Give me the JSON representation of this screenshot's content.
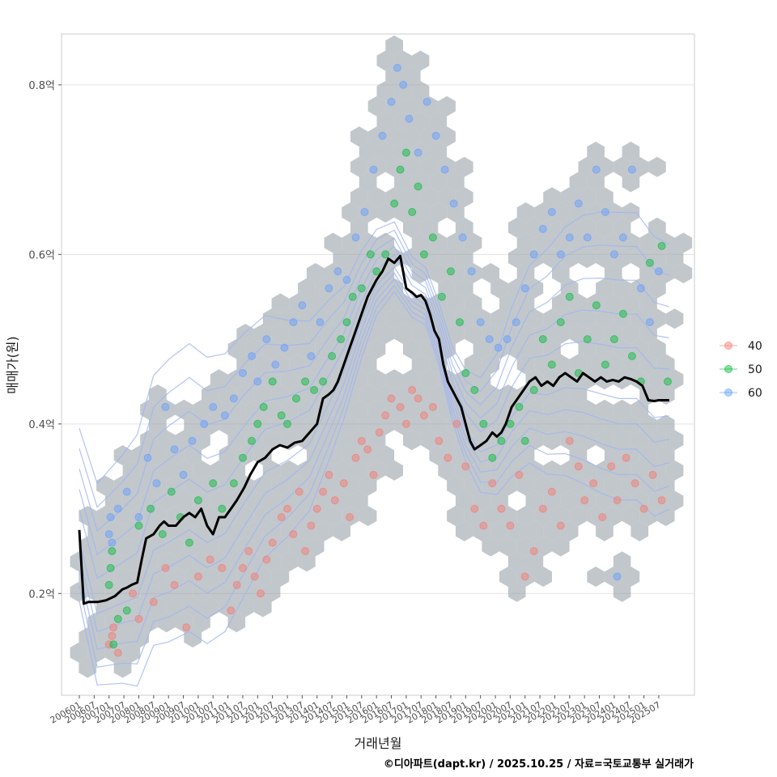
{
  "chart_data": {
    "type": "scatter",
    "title": "",
    "xlabel": "거래년월",
    "ylabel": "매매가(원)",
    "caption": "©디아파트(dapt.kr) / 2025.10.25 / 자료=국토교통부 실거래가",
    "y_unit": "억",
    "ylim": [
      0.08,
      0.86
    ],
    "y_ticks": [
      {
        "value": 0.2,
        "label": "0.2억"
      },
      {
        "value": 0.4,
        "label": "0.4억"
      },
      {
        "value": 0.6,
        "label": "0.6억"
      },
      {
        "value": 0.8,
        "label": "0.8억"
      }
    ],
    "x_ticks": [
      "200601",
      "200607",
      "200701",
      "200707",
      "200801",
      "200807",
      "200901",
      "200907",
      "201001",
      "201007",
      "201101",
      "201107",
      "201201",
      "201207",
      "201301",
      "201307",
      "201401",
      "201407",
      "201501",
      "201507",
      "201601",
      "201607",
      "201701",
      "201707",
      "201801",
      "201807",
      "201901",
      "201907",
      "202001",
      "202007",
      "202101",
      "202107",
      "202201",
      "202207",
      "202301",
      "202307",
      "202401",
      "202407",
      "202501",
      "202507"
    ],
    "legend": {
      "position": "right",
      "entries": [
        {
          "name": "40",
          "color": "#F8766D"
        },
        {
          "name": "50",
          "color": "#00BA38"
        },
        {
          "name": "60",
          "color": "#619CFF"
        }
      ]
    },
    "hexbin_color": "#9aa1a8",
    "contour_color": "#9fb4f2",
    "trend_line": {
      "name": "moving average",
      "color": "#000000",
      "x": [
        2006.0,
        2006.15,
        2006.3,
        2006.6,
        2006.9,
        2007.2,
        2007.45,
        2007.6,
        2007.75,
        2007.95,
        2008.1,
        2008.25,
        2008.5,
        2008.7,
        2008.85,
        2009.0,
        2009.25,
        2009.5,
        2009.7,
        2009.9,
        2010.1,
        2010.3,
        2010.5,
        2010.7,
        2010.9,
        2011.1,
        2011.3,
        2011.55,
        2011.75,
        2012.0,
        2012.25,
        2012.5,
        2012.75,
        2013.0,
        2013.25,
        2013.5,
        2013.75,
        2014.0,
        2014.2,
        2014.4,
        2014.55,
        2014.7,
        2014.9,
        2015.1,
        2015.3,
        2015.5,
        2015.7,
        2015.85,
        2016.0,
        2016.2,
        2016.4,
        2016.6,
        2016.8,
        2017.0,
        2017.2,
        2017.35,
        2017.5,
        2017.65,
        2017.8,
        2017.95,
        2018.1,
        2018.25,
        2018.4,
        2018.55,
        2018.7,
        2018.85,
        2019.0,
        2019.15,
        2019.3,
        2019.5,
        2019.7,
        2019.9,
        2020.05,
        2020.2,
        2020.35,
        2020.55,
        2020.75,
        2020.95,
        2021.15,
        2021.35,
        2021.55,
        2021.75,
        2021.95,
        2022.15,
        2022.35,
        2022.55,
        2022.75,
        2022.95,
        2023.15,
        2023.35,
        2023.55,
        2023.75,
        2023.95,
        2024.15,
        2024.35,
        2024.55,
        2024.75,
        2024.95,
        2025.15,
        2025.35,
        2025.5,
        2025.65,
        2025.85
      ],
      "values": [
        0.275,
        0.188,
        0.19,
        0.19,
        0.192,
        0.197,
        0.205,
        0.207,
        0.21,
        0.213,
        0.24,
        0.265,
        0.27,
        0.28,
        0.285,
        0.28,
        0.28,
        0.29,
        0.295,
        0.29,
        0.3,
        0.28,
        0.27,
        0.29,
        0.29,
        0.3,
        0.31,
        0.325,
        0.34,
        0.355,
        0.36,
        0.37,
        0.375,
        0.372,
        0.378,
        0.38,
        0.39,
        0.4,
        0.43,
        0.435,
        0.44,
        0.45,
        0.47,
        0.49,
        0.51,
        0.53,
        0.55,
        0.56,
        0.57,
        0.58,
        0.595,
        0.59,
        0.598,
        0.56,
        0.555,
        0.55,
        0.552,
        0.545,
        0.53,
        0.51,
        0.5,
        0.47,
        0.45,
        0.44,
        0.43,
        0.42,
        0.4,
        0.38,
        0.37,
        0.375,
        0.38,
        0.39,
        0.385,
        0.39,
        0.4,
        0.42,
        0.43,
        0.44,
        0.45,
        0.455,
        0.445,
        0.45,
        0.445,
        0.455,
        0.46,
        0.455,
        0.45,
        0.46,
        0.455,
        0.45,
        0.455,
        0.45,
        0.452,
        0.45,
        0.455,
        0.453,
        0.45,
        0.445,
        0.428,
        0.427,
        0.428,
        0.428,
        0.428
      ]
    },
    "series": [
      {
        "name": "40",
        "color": "#F8766D",
        "points": [
          [
            2007.0,
            0.14
          ],
          [
            2007.1,
            0.15
          ],
          [
            2007.15,
            0.16
          ],
          [
            2007.3,
            0.13
          ],
          [
            2007.8,
            0.2
          ],
          [
            2008.0,
            0.17
          ],
          [
            2008.5,
            0.19
          ],
          [
            2008.9,
            0.23
          ],
          [
            2009.2,
            0.21
          ],
          [
            2009.6,
            0.16
          ],
          [
            2010.0,
            0.22
          ],
          [
            2010.4,
            0.24
          ],
          [
            2010.8,
            0.23
          ],
          [
            2011.1,
            0.18
          ],
          [
            2011.3,
            0.21
          ],
          [
            2011.5,
            0.23
          ],
          [
            2011.7,
            0.25
          ],
          [
            2011.9,
            0.22
          ],
          [
            2012.1,
            0.2
          ],
          [
            2012.3,
            0.24
          ],
          [
            2012.5,
            0.26
          ],
          [
            2012.8,
            0.29
          ],
          [
            2013.0,
            0.3
          ],
          [
            2013.2,
            0.27
          ],
          [
            2013.4,
            0.32
          ],
          [
            2013.6,
            0.25
          ],
          [
            2013.8,
            0.28
          ],
          [
            2014.0,
            0.3
          ],
          [
            2014.2,
            0.32
          ],
          [
            2014.4,
            0.34
          ],
          [
            2014.6,
            0.31
          ],
          [
            2014.9,
            0.33
          ],
          [
            2015.1,
            0.29
          ],
          [
            2015.3,
            0.36
          ],
          [
            2015.5,
            0.38
          ],
          [
            2015.7,
            0.37
          ],
          [
            2015.9,
            0.34
          ],
          [
            2016.1,
            0.39
          ],
          [
            2016.3,
            0.41
          ],
          [
            2016.5,
            0.43
          ],
          [
            2016.8,
            0.42
          ],
          [
            2017.0,
            0.4
          ],
          [
            2017.2,
            0.44
          ],
          [
            2017.4,
            0.43
          ],
          [
            2017.6,
            0.41
          ],
          [
            2017.9,
            0.42
          ],
          [
            2018.1,
            0.38
          ],
          [
            2018.4,
            0.36
          ],
          [
            2018.7,
            0.4
          ],
          [
            2019.0,
            0.35
          ],
          [
            2019.3,
            0.3
          ],
          [
            2019.6,
            0.28
          ],
          [
            2019.9,
            0.33
          ],
          [
            2020.2,
            0.3
          ],
          [
            2020.5,
            0.28
          ],
          [
            2020.8,
            0.34
          ],
          [
            2021.0,
            0.22
          ],
          [
            2021.3,
            0.25
          ],
          [
            2021.6,
            0.3
          ],
          [
            2021.9,
            0.32
          ],
          [
            2022.2,
            0.28
          ],
          [
            2022.5,
            0.38
          ],
          [
            2022.8,
            0.35
          ],
          [
            2023.0,
            0.31
          ],
          [
            2023.3,
            0.33
          ],
          [
            2023.6,
            0.29
          ],
          [
            2023.9,
            0.35
          ],
          [
            2024.1,
            0.31
          ],
          [
            2024.4,
            0.36
          ],
          [
            2024.7,
            0.33
          ],
          [
            2025.0,
            0.3
          ],
          [
            2025.3,
            0.34
          ],
          [
            2025.6,
            0.31
          ]
        ]
      },
      {
        "name": "50",
        "color": "#00BA38",
        "points": [
          [
            2007.0,
            0.21
          ],
          [
            2007.05,
            0.23
          ],
          [
            2007.1,
            0.25
          ],
          [
            2007.15,
            0.14
          ],
          [
            2007.3,
            0.17
          ],
          [
            2007.6,
            0.18
          ],
          [
            2008.0,
            0.28
          ],
          [
            2008.4,
            0.3
          ],
          [
            2008.8,
            0.27
          ],
          [
            2009.1,
            0.32
          ],
          [
            2009.4,
            0.29
          ],
          [
            2009.7,
            0.26
          ],
          [
            2010.0,
            0.31
          ],
          [
            2010.5,
            0.33
          ],
          [
            2010.8,
            0.3
          ],
          [
            2011.2,
            0.33
          ],
          [
            2011.5,
            0.36
          ],
          [
            2011.8,
            0.38
          ],
          [
            2012.0,
            0.4
          ],
          [
            2012.2,
            0.42
          ],
          [
            2012.5,
            0.45
          ],
          [
            2012.8,
            0.41
          ],
          [
            2013.0,
            0.4
          ],
          [
            2013.3,
            0.43
          ],
          [
            2013.6,
            0.45
          ],
          [
            2013.9,
            0.44
          ],
          [
            2014.2,
            0.45
          ],
          [
            2014.5,
            0.48
          ],
          [
            2014.8,
            0.5
          ],
          [
            2015.0,
            0.52
          ],
          [
            2015.2,
            0.55
          ],
          [
            2015.5,
            0.56
          ],
          [
            2015.8,
            0.6
          ],
          [
            2016.0,
            0.58
          ],
          [
            2016.3,
            0.6
          ],
          [
            2016.6,
            0.66
          ],
          [
            2016.8,
            0.7
          ],
          [
            2017.0,
            0.72
          ],
          [
            2017.2,
            0.65
          ],
          [
            2017.4,
            0.68
          ],
          [
            2017.6,
            0.6
          ],
          [
            2017.9,
            0.62
          ],
          [
            2018.2,
            0.55
          ],
          [
            2018.5,
            0.58
          ],
          [
            2018.8,
            0.52
          ],
          [
            2019.0,
            0.46
          ],
          [
            2019.3,
            0.44
          ],
          [
            2019.6,
            0.4
          ],
          [
            2019.9,
            0.36
          ],
          [
            2020.2,
            0.38
          ],
          [
            2020.5,
            0.4
          ],
          [
            2020.8,
            0.42
          ],
          [
            2021.0,
            0.38
          ],
          [
            2021.3,
            0.44
          ],
          [
            2021.6,
            0.5
          ],
          [
            2021.9,
            0.47
          ],
          [
            2022.2,
            0.52
          ],
          [
            2022.5,
            0.55
          ],
          [
            2022.8,
            0.46
          ],
          [
            2023.1,
            0.5
          ],
          [
            2023.4,
            0.54
          ],
          [
            2023.7,
            0.47
          ],
          [
            2024.0,
            0.5
          ],
          [
            2024.3,
            0.53
          ],
          [
            2024.6,
            0.48
          ],
          [
            2024.9,
            0.45
          ],
          [
            2025.2,
            0.59
          ],
          [
            2025.6,
            0.61
          ],
          [
            2025.8,
            0.45
          ]
        ]
      },
      {
        "name": "60",
        "color": "#619CFF",
        "points": [
          [
            2007.0,
            0.27
          ],
          [
            2007.05,
            0.29
          ],
          [
            2007.1,
            0.26
          ],
          [
            2007.3,
            0.3
          ],
          [
            2007.6,
            0.32
          ],
          [
            2008.0,
            0.29
          ],
          [
            2008.3,
            0.36
          ],
          [
            2008.6,
            0.33
          ],
          [
            2008.9,
            0.42
          ],
          [
            2009.2,
            0.37
          ],
          [
            2009.5,
            0.34
          ],
          [
            2009.8,
            0.38
          ],
          [
            2010.2,
            0.4
          ],
          [
            2010.5,
            0.42
          ],
          [
            2010.9,
            0.41
          ],
          [
            2011.2,
            0.43
          ],
          [
            2011.5,
            0.46
          ],
          [
            2011.8,
            0.48
          ],
          [
            2012.0,
            0.45
          ],
          [
            2012.3,
            0.5
          ],
          [
            2012.6,
            0.47
          ],
          [
            2012.9,
            0.49
          ],
          [
            2013.2,
            0.52
          ],
          [
            2013.5,
            0.54
          ],
          [
            2013.8,
            0.48
          ],
          [
            2014.1,
            0.52
          ],
          [
            2014.4,
            0.56
          ],
          [
            2014.7,
            0.58
          ],
          [
            2015.0,
            0.57
          ],
          [
            2015.3,
            0.62
          ],
          [
            2015.6,
            0.65
          ],
          [
            2015.9,
            0.7
          ],
          [
            2016.2,
            0.74
          ],
          [
            2016.5,
            0.78
          ],
          [
            2016.7,
            0.82
          ],
          [
            2016.9,
            0.8
          ],
          [
            2017.1,
            0.76
          ],
          [
            2017.4,
            0.72
          ],
          [
            2017.7,
            0.78
          ],
          [
            2018.0,
            0.74
          ],
          [
            2018.3,
            0.7
          ],
          [
            2018.6,
            0.66
          ],
          [
            2018.9,
            0.62
          ],
          [
            2019.2,
            0.58
          ],
          [
            2019.5,
            0.52
          ],
          [
            2019.8,
            0.5
          ],
          [
            2020.1,
            0.49
          ],
          [
            2020.4,
            0.5
          ],
          [
            2020.7,
            0.52
          ],
          [
            2021.0,
            0.56
          ],
          [
            2021.3,
            0.6
          ],
          [
            2021.6,
            0.63
          ],
          [
            2021.9,
            0.65
          ],
          [
            2022.2,
            0.6
          ],
          [
            2022.5,
            0.62
          ],
          [
            2022.8,
            0.66
          ],
          [
            2023.1,
            0.62
          ],
          [
            2023.4,
            0.7
          ],
          [
            2023.7,
            0.65
          ],
          [
            2024.0,
            0.6
          ],
          [
            2024.3,
            0.62
          ],
          [
            2024.6,
            0.7
          ],
          [
            2024.9,
            0.56
          ],
          [
            2025.2,
            0.52
          ],
          [
            2025.5,
            0.58
          ],
          [
            2024.1,
            0.22
          ]
        ]
      }
    ]
  }
}
